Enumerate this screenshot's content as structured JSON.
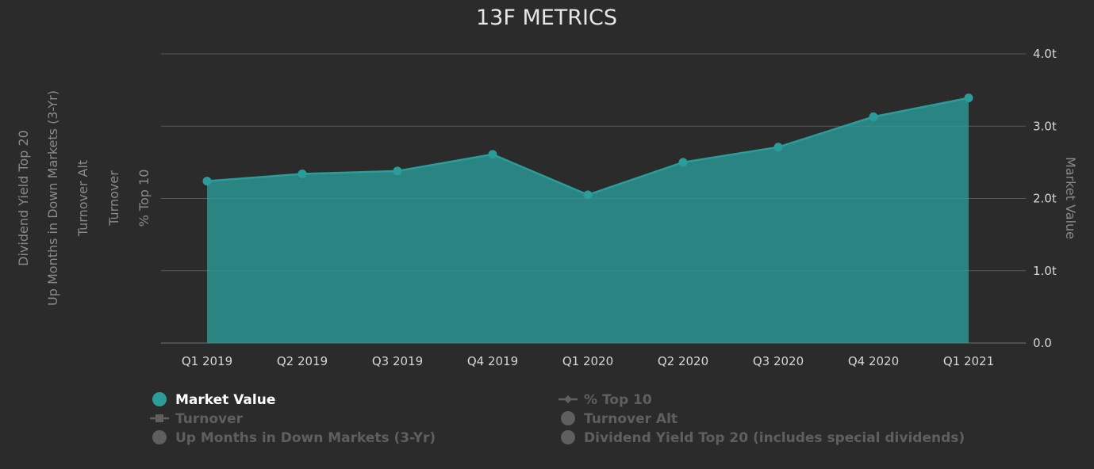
{
  "chart_data": {
    "type": "area",
    "title": "13F METRICS",
    "categories": [
      "Q1 2019",
      "Q2 2019",
      "Q3 2019",
      "Q4 2019",
      "Q1 2020",
      "Q2 2020",
      "Q3 2020",
      "Q4 2020",
      "Q1 2021"
    ],
    "series": [
      {
        "name": "Market Value",
        "values": [
          2.24,
          2.34,
          2.38,
          2.61,
          2.05,
          2.5,
          2.71,
          3.13,
          3.39
        ],
        "color": "#2a9d9b",
        "visible": true
      }
    ],
    "right_axis": {
      "label": "Market Value",
      "ylim": [
        0,
        4
      ],
      "ticks": [
        "0.0",
        "1.0t",
        "2.0t",
        "3.0t",
        "4.0t"
      ],
      "tick_values": [
        0,
        1,
        2,
        3,
        4
      ]
    },
    "left_axis_labels": [
      "Dividend Yield Top 20",
      "Up Months in Down Markets (3-Yr)",
      "Turnover Alt",
      "Turnover",
      "% Top 10"
    ],
    "grid": true,
    "legend_position": "bottom",
    "legend": [
      {
        "label": "Market Value",
        "icon": "circle-icon",
        "active": true
      },
      {
        "label": "% Top 10",
        "icon": "line-diamond-icon",
        "active": false
      },
      {
        "label": "Turnover",
        "icon": "line-square-icon",
        "active": false
      },
      {
        "label": "Turnover Alt",
        "icon": "circle-icon",
        "active": false
      },
      {
        "label": "Up Months in Down Markets (3-Yr)",
        "icon": "circle-icon",
        "active": false
      },
      {
        "label": "Dividend Yield Top 20 (includes special dividends)",
        "icon": "circle-icon",
        "active": false
      }
    ],
    "colors": {
      "background": "#2b2b2b",
      "grid": "#5a5a5a",
      "area_fill": "#2a9d9b",
      "line": "#2a9d9b",
      "legend_active": "#ffffff",
      "legend_inactive": "#5f5f5f",
      "legend_active_icon": "#2a9d9b"
    }
  }
}
